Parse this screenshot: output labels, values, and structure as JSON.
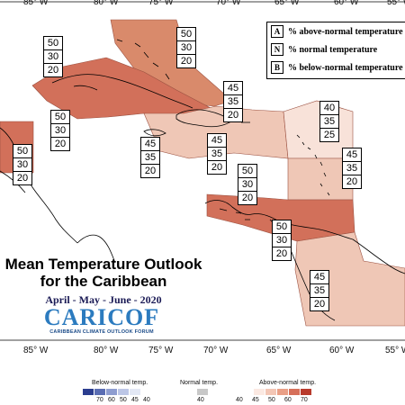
{
  "map": {
    "title_line1": "Mean Temperature Outlook",
    "title_line2": "for the Caribbean",
    "period": "April - May - June - 2020",
    "logo_name": "CARICOF",
    "logo_tagline": "CARIBBEAN CLIMATE OUTLOOK FORUM",
    "longitude_labels": [
      "85° W",
      "80° W",
      "75° W",
      "70° W",
      "65° W",
      "60° W",
      "55° W"
    ]
  },
  "legend": {
    "items": [
      {
        "key": "A",
        "text": "% above-normal temperature"
      },
      {
        "key": "N",
        "text": "% normal temperature"
      },
      {
        "key": "B",
        "text": "% below-normal temperature"
      }
    ]
  },
  "regions": [
    {
      "name": "bahamas",
      "values": [
        "50",
        "30",
        "20"
      ],
      "color": "#d98a6b"
    },
    {
      "name": "cuba",
      "values": [
        "50",
        "30",
        "20"
      ],
      "color": "#d2705a"
    },
    {
      "name": "western-cuba",
      "values": [
        "50",
        "30",
        "20"
      ],
      "color": "#d2705a"
    },
    {
      "name": "belize",
      "values": [
        "50",
        "30",
        "20"
      ],
      "color": "#d2705a"
    },
    {
      "name": "jamaica",
      "values": [
        "45",
        "35",
        "20"
      ],
      "color": "#efc7b6"
    },
    {
      "name": "hispaniola",
      "values": [
        "45",
        "35",
        "20"
      ],
      "color": "#efc7b6"
    },
    {
      "name": "turks-caicos",
      "values": [
        "45",
        "35",
        "20"
      ],
      "color": "#e9a88e"
    },
    {
      "name": "leeward-islands",
      "values": [
        "40",
        "35",
        "25"
      ],
      "color": "#f8e2d9"
    },
    {
      "name": "windward-islands",
      "values": [
        "45",
        "35",
        "20"
      ],
      "color": "#efc7b6"
    },
    {
      "name": "colombia-coast",
      "values": [
        "50",
        "30",
        "20"
      ],
      "color": "#d2705a"
    },
    {
      "name": "abc-islands",
      "values": [
        "50",
        "30",
        "20"
      ],
      "color": "#d2705a"
    },
    {
      "name": "guianas",
      "values": [
        "45",
        "35",
        "20"
      ],
      "color": "#efc7b6"
    }
  ],
  "scale": {
    "below_label": "Below-normal temp.",
    "normal_label": "Normal temp.",
    "above_label": "Above-normal temp.",
    "below_ticks": [
      "70",
      "60",
      "50",
      "45",
      "40"
    ],
    "normal_tick": "40",
    "above_ticks": [
      "40",
      "45",
      "50",
      "60",
      "70"
    ],
    "below_colors": [
      "#2b3d8f",
      "#5a6db3",
      "#8e9dd0",
      "#bcc6e6",
      "#e3e8f5"
    ],
    "normal_color": "#c8c8c8",
    "above_colors": [
      "#fbe9e2",
      "#f3c6b5",
      "#e99f86",
      "#d6705a",
      "#b83a2c"
    ]
  }
}
